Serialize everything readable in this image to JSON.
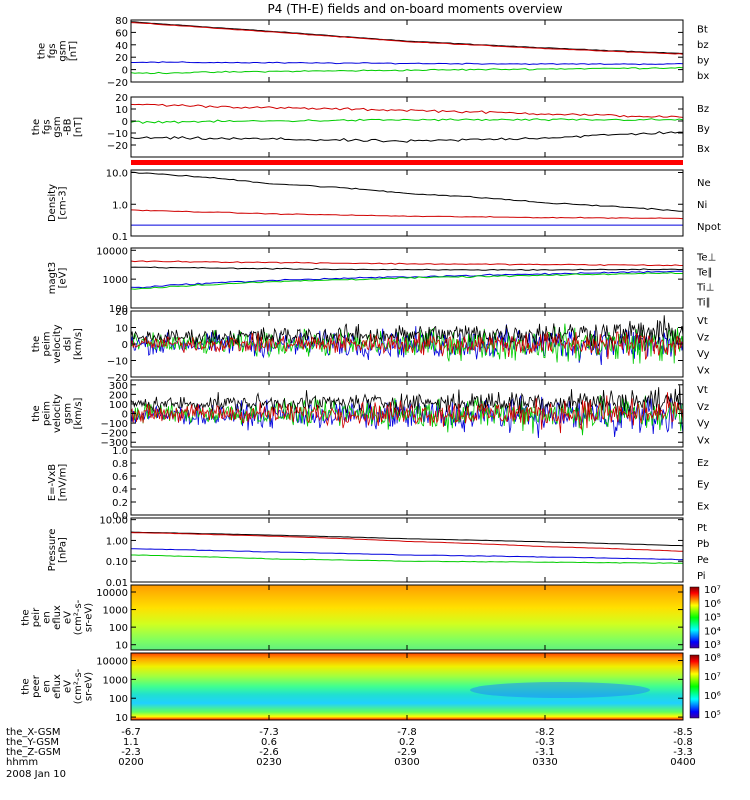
{
  "title": "P4 (TH-E) fields and on-board moments overview",
  "colors": {
    "black": "#000000",
    "red": "#d00000",
    "green": "#00cc00",
    "blue": "#0000dd",
    "separator": "#ff0000"
  },
  "chart_data": [
    {
      "type": "line",
      "ylabel": [
        "the",
        "fgs",
        "gsm",
        "[nT]"
      ],
      "ylim": [
        -20,
        80
      ],
      "yticks": [
        "80",
        "60",
        "40",
        "20",
        "0",
        "−20"
      ],
      "tickvals": [
        80,
        60,
        40,
        20,
        0,
        -20
      ],
      "legend": [
        {
          "name": "Bt",
          "color": "black"
        },
        {
          "name": "bz",
          "color": "red"
        },
        {
          "name": "by",
          "color": "green"
        },
        {
          "name": "bx",
          "color": "blue"
        }
      ],
      "series": [
        {
          "name": "Bt",
          "color": "black",
          "x": [
            0,
            0.5,
            1,
            1.5,
            2
          ],
          "y": [
            77,
            62,
            46,
            35,
            26
          ],
          "noise": 0.3
        },
        {
          "name": "bz",
          "color": "red",
          "x": [
            0,
            0.5,
            1,
            1.5,
            2
          ],
          "y": [
            76,
            61,
            45,
            34,
            25
          ],
          "noise": 0.3
        },
        {
          "name": "by",
          "color": "green",
          "x": [
            0,
            0.5,
            1,
            1.5,
            2
          ],
          "y": [
            -6,
            -3,
            -1,
            1,
            3
          ],
          "noise": 0.8
        },
        {
          "name": "bx",
          "color": "blue",
          "x": [
            0,
            0.5,
            1,
            1.5,
            2
          ],
          "y": [
            12,
            11,
            10,
            9,
            9
          ],
          "noise": 0.6
        }
      ]
    },
    {
      "type": "line",
      "ylabel": [
        "the",
        "fgs",
        "gsm",
        "-BB",
        "[nT]"
      ],
      "ylim": [
        -30,
        20
      ],
      "yticks": [
        "20",
        "10",
        "0",
        "−10",
        "−20"
      ],
      "tickvals": [
        20,
        10,
        0,
        -10,
        -20
      ],
      "legend": [
        {
          "name": "Bz",
          "color": "red"
        },
        {
          "name": "By",
          "color": "green"
        },
        {
          "name": "Bx",
          "color": "black"
        }
      ],
      "series": [
        {
          "name": "Bz",
          "color": "red",
          "x": [
            0,
            0.5,
            1,
            1.5,
            2
          ],
          "y": [
            14,
            11,
            9,
            6,
            3
          ],
          "noise": 0.7
        },
        {
          "name": "By",
          "color": "green",
          "x": [
            0,
            0.5,
            1,
            1.5,
            2
          ],
          "y": [
            -1,
            0,
            1,
            1,
            1
          ],
          "noise": 0.6
        },
        {
          "name": "Bx",
          "color": "black",
          "x": [
            0,
            0.5,
            1,
            1.5,
            2
          ],
          "y": [
            -14,
            -15,
            -17,
            -14,
            -9
          ],
          "noise": 0.8
        }
      ]
    },
    {
      "type": "line",
      "log": true,
      "ylabel": [
        "Density",
        "[cm-3]"
      ],
      "ylim": [
        0.1,
        12
      ],
      "yticks": [
        "10.0",
        "1.0",
        "0.1"
      ],
      "tickvals": [
        10,
        1,
        0.1
      ],
      "legend": [
        {
          "name": "Ne",
          "color": "red"
        },
        {
          "name": "Ni",
          "color": "black"
        },
        {
          "name": "Npot",
          "color": "blue"
        }
      ],
      "series": [
        {
          "name": "Ni",
          "color": "black",
          "x": [
            0,
            0.5,
            1,
            1.5,
            2
          ],
          "y": [
            10,
            4.5,
            2.2,
            1.1,
            0.6
          ],
          "noise": 0.03
        },
        {
          "name": "Ne",
          "color": "red",
          "x": [
            0,
            0.5,
            1,
            1.5,
            2
          ],
          "y": [
            0.65,
            0.5,
            0.42,
            0.38,
            0.36
          ],
          "noise": 0.02
        },
        {
          "name": "Npot",
          "color": "blue",
          "x": [
            0,
            0.5,
            1,
            1.5,
            2
          ],
          "y": [
            0.22,
            0.22,
            0.22,
            0.22,
            0.22
          ],
          "noise": 0
        }
      ]
    },
    {
      "type": "line",
      "log": true,
      "ylabel": [
        "magt3",
        "[eV]"
      ],
      "ylim": [
        100,
        12000
      ],
      "yticks": [
        "10000",
        "1000",
        "100"
      ],
      "tickvals": [
        10000,
        1000,
        100
      ],
      "legend": [
        {
          "name": "Te⊥",
          "color": "red"
        },
        {
          "name": "Te∥",
          "color": "black"
        },
        {
          "name": "Ti⊥",
          "color": "blue"
        },
        {
          "name": "Ti∥",
          "color": "green"
        }
      ],
      "series": [
        {
          "name": "Te⊥",
          "color": "red",
          "x": [
            0,
            0.5,
            1,
            1.5,
            2
          ],
          "y": [
            4200,
            3800,
            3400,
            3200,
            3000
          ],
          "noise": 0.03
        },
        {
          "name": "Te∥",
          "color": "black",
          "x": [
            0,
            0.5,
            1,
            1.5,
            2
          ],
          "y": [
            2600,
            2300,
            2100,
            2100,
            2200
          ],
          "noise": 0.03
        },
        {
          "name": "Ti⊥",
          "color": "blue",
          "x": [
            0,
            0.5,
            1,
            1.5,
            2
          ],
          "y": [
            500,
            900,
            1200,
            1500,
            1900
          ],
          "noise": 0.04
        },
        {
          "name": "Ti∥",
          "color": "green",
          "x": [
            0,
            0.5,
            1,
            1.5,
            2
          ],
          "y": [
            450,
            800,
            1100,
            1350,
            1650
          ],
          "noise": 0.04
        }
      ]
    },
    {
      "type": "line",
      "noisy": true,
      "ylabel": [
        "the",
        "peim",
        "velocity",
        "dsl",
        "[km/s]"
      ],
      "ylim": [
        -20,
        20
      ],
      "yticks": [
        "20",
        "10",
        "0",
        "−10",
        "−20"
      ],
      "tickvals": [
        20,
        10,
        0,
        -10,
        -20
      ],
      "legend": [
        {
          "name": "Vt",
          "color": "black"
        },
        {
          "name": "Vz",
          "color": "red"
        },
        {
          "name": "Vy",
          "color": "green"
        },
        {
          "name": "Vx",
          "color": "blue"
        }
      ],
      "series": [
        {
          "name": "Vx",
          "color": "blue",
          "x": [
            0,
            2
          ],
          "y": [
            0,
            0
          ],
          "noise": 4
        },
        {
          "name": "Vy",
          "color": "green",
          "x": [
            0,
            2
          ],
          "y": [
            0,
            0
          ],
          "noise": 4
        },
        {
          "name": "Vt",
          "color": "black",
          "x": [
            0,
            2
          ],
          "y": [
            4,
            7
          ],
          "noise": 3
        },
        {
          "name": "Vz",
          "color": "red",
          "x": [
            0,
            2
          ],
          "y": [
            0,
            0
          ],
          "noise": 3
        }
      ]
    },
    {
      "type": "line",
      "noisy": true,
      "ylabel": [
        "the",
        "peim",
        "velocity",
        "gsm",
        "[km/s]"
      ],
      "ylim": [
        -350,
        350
      ],
      "yticks": [
        "300",
        "200",
        "100",
        "0",
        "−100",
        "−200",
        "−300"
      ],
      "tickvals": [
        300,
        200,
        100,
        0,
        -100,
        -200,
        -300
      ],
      "legend": [
        {
          "name": "Vt",
          "color": "black"
        },
        {
          "name": "Vz",
          "color": "red"
        },
        {
          "name": "Vy",
          "color": "green"
        },
        {
          "name": "Vx",
          "color": "blue"
        }
      ],
      "series": [
        {
          "name": "Vx",
          "color": "blue",
          "x": [
            0,
            2
          ],
          "y": [
            -20,
            -20
          ],
          "noise": 70
        },
        {
          "name": "Vy",
          "color": "green",
          "x": [
            0,
            2
          ],
          "y": [
            0,
            0
          ],
          "noise": 70
        },
        {
          "name": "Vt",
          "color": "black",
          "x": [
            0,
            2
          ],
          "y": [
            100,
            130
          ],
          "noise": 50
        },
        {
          "name": "Vz",
          "color": "red",
          "x": [
            0,
            2
          ],
          "y": [
            0,
            0
          ],
          "noise": 60
        }
      ]
    },
    {
      "type": "line",
      "ylabel": [
        "E=-VxB",
        "[mV/m]"
      ],
      "ylim": [
        0,
        1
      ],
      "yticks": [
        "1.0",
        "0.8",
        "0.6",
        "0.4",
        "0.2",
        "0.0"
      ],
      "tickvals": [
        1,
        0.8,
        0.6,
        0.4,
        0.2,
        0
      ],
      "legend": [
        {
          "name": "Ez",
          "color": "red"
        },
        {
          "name": "Ey",
          "color": "green"
        },
        {
          "name": "Ex",
          "color": "blue"
        }
      ],
      "series": []
    },
    {
      "type": "line",
      "log": true,
      "ylabel": [
        "Pressure",
        "[nPa]"
      ],
      "ylim": [
        0.01,
        12
      ],
      "yticks": [
        "10.00",
        "1.00",
        "0.10",
        "0.01"
      ],
      "tickvals": [
        10,
        1,
        0.1,
        0.01
      ],
      "legend": [
        {
          "name": "Pt",
          "color": "black"
        },
        {
          "name": "Pb",
          "color": "red"
        },
        {
          "name": "Pe",
          "color": "green"
        },
        {
          "name": "Pi",
          "color": "blue"
        }
      ],
      "series": [
        {
          "name": "Pt",
          "color": "black",
          "x": [
            0,
            0.5,
            1,
            1.5,
            2
          ],
          "y": [
            2.5,
            1.8,
            1.2,
            0.85,
            0.55
          ],
          "noise": 0.01
        },
        {
          "name": "Pb",
          "color": "red",
          "x": [
            0,
            0.5,
            1,
            1.5,
            2
          ],
          "y": [
            2.4,
            1.6,
            0.9,
            0.5,
            0.3
          ],
          "noise": 0.01
        },
        {
          "name": "Pi",
          "color": "blue",
          "x": [
            0,
            0.5,
            1,
            1.5,
            2
          ],
          "y": [
            0.4,
            0.28,
            0.2,
            0.16,
            0.12
          ],
          "noise": 0.02
        },
        {
          "name": "Pe",
          "color": "green",
          "x": [
            0,
            0.5,
            1,
            1.5,
            2
          ],
          "y": [
            0.2,
            0.13,
            0.1,
            0.09,
            0.08
          ],
          "noise": 0.02
        }
      ]
    },
    {
      "type": "heatmap",
      "log": true,
      "ylabel": [
        "the",
        "peir",
        "en",
        "eflux",
        "eV",
        "(cm²-s-",
        "sr-eV)"
      ],
      "ylim": [
        5,
        25000
      ],
      "yticks": [
        "10000",
        "1000",
        "100",
        "10"
      ],
      "tickvals": [
        10000,
        1000,
        100,
        10
      ],
      "colorbar": [
        "10⁷",
        "10⁶",
        "10⁵",
        "10⁴",
        "10³"
      ]
    },
    {
      "type": "heatmap",
      "log": true,
      "ylabel": [
        "the",
        "peer",
        "en",
        "eflux",
        "eV",
        "(cm²-s-",
        "sr-eV)"
      ],
      "ylim": [
        7,
        25000
      ],
      "yticks": [
        "10000",
        "1000",
        "100",
        "10"
      ],
      "tickvals": [
        10000,
        1000,
        100,
        10
      ],
      "colorbar": [
        "10⁸",
        "10⁷",
        "10⁶",
        "10⁵"
      ]
    }
  ],
  "xaxis": {
    "rows": [
      {
        "label": "the_X-GSM",
        "values": [
          "-6.7",
          "-7.3",
          "-7.8",
          "-8.2",
          "-8.5"
        ]
      },
      {
        "label": "the_Y-GSM",
        "values": [
          "1.1",
          "0.6",
          "0.2",
          "-0.3",
          "-0.8"
        ]
      },
      {
        "label": "the_Z-GSM",
        "values": [
          "-2.3",
          "-2.6",
          "-2.9",
          "-3.1",
          "-3.3"
        ]
      },
      {
        "label": "hhmm",
        "values": [
          "0200",
          "0230",
          "0300",
          "0330",
          "0400"
        ]
      }
    ],
    "date": "2008 Jan 10"
  }
}
